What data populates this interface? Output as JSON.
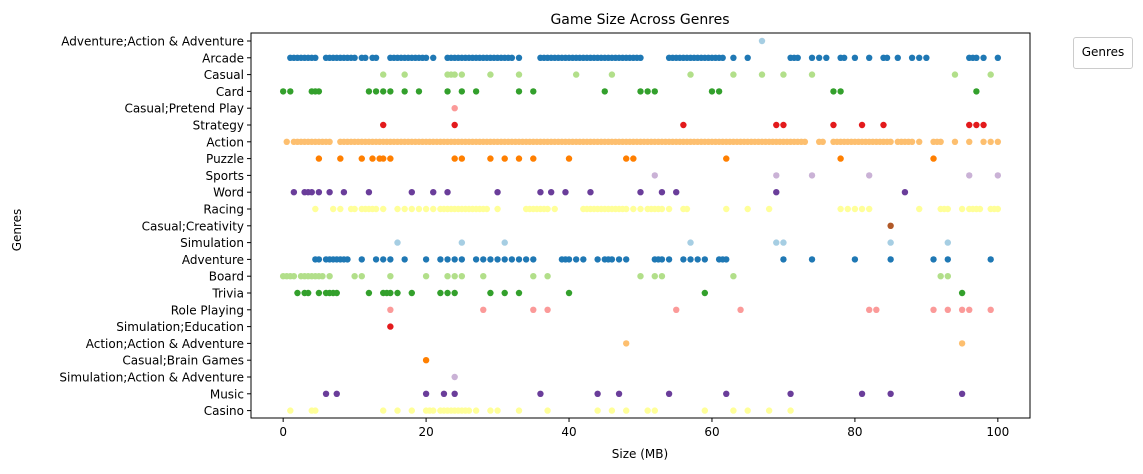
{
  "chart_data": {
    "type": "scatter",
    "title": "Game Size Across Genres",
    "xlabel": "Size (MB)",
    "ylabel": "Genres",
    "xlim": [
      -4.5,
      104.5
    ],
    "xticks": [
      0,
      20,
      40,
      60,
      80,
      100
    ],
    "grid": false,
    "legend": {
      "title": "Genres",
      "placement": "upper right, outside plot"
    },
    "categories": [
      "Adventure;Action & Adventure",
      "Arcade",
      "Casual",
      "Card",
      "Casual;Pretend Play",
      "Strategy",
      "Action",
      "Puzzle",
      "Sports",
      "Word",
      "Racing",
      "Casual;Creativity",
      "Simulation",
      "Adventure",
      "Board",
      "Trivia",
      "Role Playing",
      "Simulation;Education",
      "Action;Action & Adventure",
      "Casual;Brain Games",
      "Simulation;Action & Adventure",
      "Music",
      "Casino"
    ],
    "series": [
      {
        "category": "Adventure;Action & Adventure",
        "color": "#a6cee3",
        "x": [
          67
        ]
      },
      {
        "category": "Arcade",
        "color": "#1f78b4",
        "x": [
          1,
          1.5,
          2,
          2.5,
          3,
          3.5,
          4,
          4.5,
          6,
          6.5,
          7,
          7.5,
          8,
          8.5,
          9,
          9.5,
          10,
          11,
          11.5,
          12.5,
          13,
          15,
          15.5,
          16,
          16.5,
          17,
          17.5,
          18,
          18.5,
          19,
          19.5,
          20,
          21,
          23,
          23.5,
          24,
          24.5,
          25,
          25.5,
          26,
          26.5,
          27,
          27.5,
          28,
          28.5,
          29,
          29.5,
          30,
          30.5,
          31,
          31.5,
          32,
          33,
          36,
          36.5,
          37,
          37.5,
          38,
          38.5,
          39,
          39.5,
          40,
          40.5,
          41,
          41.5,
          42,
          42.5,
          43,
          43.5,
          44,
          44.5,
          45,
          45.5,
          46,
          46.5,
          47,
          47.5,
          48,
          48.5,
          49,
          49.5,
          50,
          54,
          54.5,
          55,
          55.5,
          56,
          56.5,
          57,
          57.5,
          58,
          58.5,
          59,
          59.5,
          60,
          60.5,
          61,
          61.5,
          63,
          65,
          71,
          71.5,
          72,
          74,
          75,
          76,
          78,
          78.5,
          80,
          82,
          84,
          84.5,
          86,
          88,
          89,
          90,
          96,
          96.5,
          97,
          98,
          100
        ]
      },
      {
        "category": "Casual",
        "color": "#b2df8a",
        "x": [
          14,
          17,
          23,
          23.5,
          24,
          25,
          29,
          33,
          41,
          46,
          57,
          63,
          67,
          70,
          74,
          94,
          99
        ]
      },
      {
        "category": "Card",
        "color": "#33a02c",
        "x": [
          0,
          1,
          4,
          4.5,
          5,
          12,
          13,
          14,
          15,
          17,
          19,
          23,
          25,
          27,
          33,
          35,
          45,
          50,
          51,
          52,
          60,
          61,
          77,
          78,
          97
        ]
      },
      {
        "category": "Casual;Pretend Play",
        "color": "#fb9a99",
        "x": [
          24
        ]
      },
      {
        "category": "Strategy",
        "color": "#e31a1c",
        "x": [
          14,
          24,
          56,
          69,
          70,
          77,
          81,
          84,
          96,
          97,
          98
        ]
      },
      {
        "category": "Action",
        "color": "#fdbf6f",
        "x": [
          0.5,
          1.5,
          2,
          2.5,
          3,
          3.5,
          4,
          4.5,
          5,
          5.5,
          6,
          6.5,
          8,
          8.5,
          9,
          9.5,
          10,
          10.5,
          11,
          11.5,
          12,
          12.5,
          13,
          13.5,
          14,
          14.5,
          15,
          15.5,
          16,
          16.5,
          17,
          17.5,
          18,
          18.5,
          19,
          19.5,
          20,
          20.5,
          21,
          21.5,
          22,
          22.5,
          23,
          23.5,
          24,
          24.5,
          25,
          25.5,
          26,
          26.5,
          27,
          27.5,
          28,
          28.5,
          29,
          29.5,
          30,
          30.5,
          31,
          31.5,
          32,
          32.5,
          33,
          33.5,
          34,
          34.5,
          35,
          35.5,
          36,
          36.5,
          37,
          37.5,
          38,
          38.5,
          39,
          39.5,
          40,
          40.5,
          41,
          41.5,
          42,
          42.5,
          43,
          43.5,
          44,
          44.5,
          45,
          45.5,
          46,
          46.5,
          47,
          47.5,
          48,
          48.5,
          49,
          49.5,
          50,
          50.5,
          51,
          51.5,
          52,
          52.5,
          53,
          53.5,
          54,
          54.5,
          55,
          55.5,
          56,
          56.5,
          57,
          57.5,
          58,
          58.5,
          59,
          59.5,
          60,
          60.5,
          61,
          61.5,
          62,
          62.5,
          63,
          63.5,
          64,
          64.5,
          65,
          65.5,
          66,
          66.5,
          67,
          67.5,
          68,
          68.5,
          69,
          69.5,
          70,
          70.5,
          71,
          71.5,
          72,
          72.5,
          73,
          75,
          75.5,
          77,
          77.5,
          78,
          78.5,
          79,
          79.5,
          80,
          80.5,
          81,
          81.5,
          82,
          82.5,
          83,
          83.5,
          84,
          84.5,
          85,
          86,
          86.5,
          87,
          87.5,
          88,
          89,
          91,
          91.5,
          92,
          94,
          96,
          98,
          99,
          100
        ]
      },
      {
        "category": "Puzzle",
        "color": "#ff7f00",
        "x": [
          5,
          8,
          11,
          12.5,
          13.5,
          14,
          15,
          24,
          25,
          29,
          31,
          33,
          35,
          40,
          48,
          49,
          62,
          78,
          91
        ]
      },
      {
        "category": "Sports",
        "color": "#cab2d6",
        "x": [
          52,
          69,
          74,
          82,
          96,
          100
        ]
      },
      {
        "category": "Word",
        "color": "#6a3d9a",
        "x": [
          1.5,
          3,
          3.5,
          4,
          5,
          6.5,
          8.5,
          12,
          18,
          21,
          23,
          30,
          36,
          37.5,
          39.5,
          43,
          50,
          53,
          55,
          69,
          87
        ]
      },
      {
        "category": "Racing",
        "color": "#ffff99",
        "x": [
          4.5,
          7,
          8,
          9.5,
          10,
          11,
          11.5,
          12,
          12.5,
          13,
          14,
          16,
          17,
          18,
          19,
          20,
          21,
          22,
          22.5,
          23,
          23.5,
          24,
          24.5,
          25,
          25.5,
          26,
          26.5,
          27,
          27.5,
          28,
          28.5,
          30,
          34,
          34.5,
          35,
          35.5,
          36,
          36.5,
          37,
          38,
          42,
          42.5,
          43,
          43.5,
          44,
          44.5,
          45,
          45.5,
          46,
          46.5,
          47,
          47.5,
          48,
          49,
          50,
          51,
          51.5,
          52,
          52.5,
          53,
          54,
          56,
          56.5,
          62,
          65,
          68,
          78,
          79,
          80,
          81,
          82,
          89,
          92,
          92.5,
          93,
          95,
          96,
          96.5,
          97,
          97.5,
          99,
          99.5,
          100
        ]
      },
      {
        "category": "Casual;Creativity",
        "color": "#b15928",
        "x": [
          85
        ]
      },
      {
        "category": "Simulation",
        "color": "#a6cee3",
        "x": [
          16,
          25,
          31,
          57,
          69,
          70,
          85,
          93
        ]
      },
      {
        "category": "Adventure",
        "color": "#1f78b4",
        "x": [
          4.5,
          5,
          6,
          6.5,
          7,
          7.5,
          8,
          8.5,
          9,
          11,
          13,
          14,
          15,
          17,
          20,
          22,
          23,
          24,
          25,
          27,
          28,
          29,
          30,
          31,
          32,
          33,
          34,
          35,
          39,
          39.5,
          40,
          41,
          42,
          44,
          45,
          45.5,
          46,
          47,
          48,
          52,
          52.5,
          53,
          54,
          56,
          57,
          58,
          59,
          61,
          61.5,
          62,
          70,
          74,
          80,
          85,
          91,
          93,
          99
        ]
      },
      {
        "category": "Board",
        "color": "#b2df8a",
        "x": [
          0,
          0.5,
          1,
          1.5,
          2.5,
          3,
          3.5,
          4,
          4.5,
          5,
          5.5,
          6.5,
          10,
          11,
          15,
          20,
          23,
          24,
          25,
          28,
          35,
          37,
          50,
          52,
          53,
          63,
          92,
          93
        ]
      },
      {
        "category": "Trivia",
        "color": "#33a02c",
        "x": [
          2,
          3,
          3.5,
          5,
          6,
          6.5,
          7,
          7.5,
          12,
          14,
          14.5,
          15,
          16,
          18,
          22,
          23,
          24,
          29,
          31,
          33,
          40,
          59,
          95
        ]
      },
      {
        "category": "Role Playing",
        "color": "#fb9a99",
        "x": [
          15,
          28,
          35,
          37,
          55,
          64,
          82,
          83,
          91,
          93,
          95,
          96,
          99
        ]
      },
      {
        "category": "Simulation;Education",
        "color": "#e31a1c",
        "x": [
          15
        ]
      },
      {
        "category": "Action;Action & Adventure",
        "color": "#fdbf6f",
        "x": [
          48,
          95
        ]
      },
      {
        "category": "Casual;Brain Games",
        "color": "#ff7f00",
        "x": [
          20
        ]
      },
      {
        "category": "Simulation;Action & Adventure",
        "color": "#cab2d6",
        "x": [
          24
        ]
      },
      {
        "category": "Music",
        "color": "#6a3d9a",
        "x": [
          6,
          7.5,
          20,
          22.5,
          24,
          36,
          44,
          47,
          54,
          62,
          71,
          81,
          85,
          95
        ]
      },
      {
        "category": "Casino",
        "color": "#ffff99",
        "x": [
          1,
          4,
          4.5,
          14,
          16,
          18,
          20,
          20.5,
          21,
          22,
          22.5,
          23,
          23.5,
          24,
          24.5,
          25,
          25.5,
          26,
          27,
          29,
          30,
          33,
          37,
          44,
          46,
          48,
          51,
          52,
          59,
          63,
          65,
          68,
          71
        ]
      }
    ]
  }
}
